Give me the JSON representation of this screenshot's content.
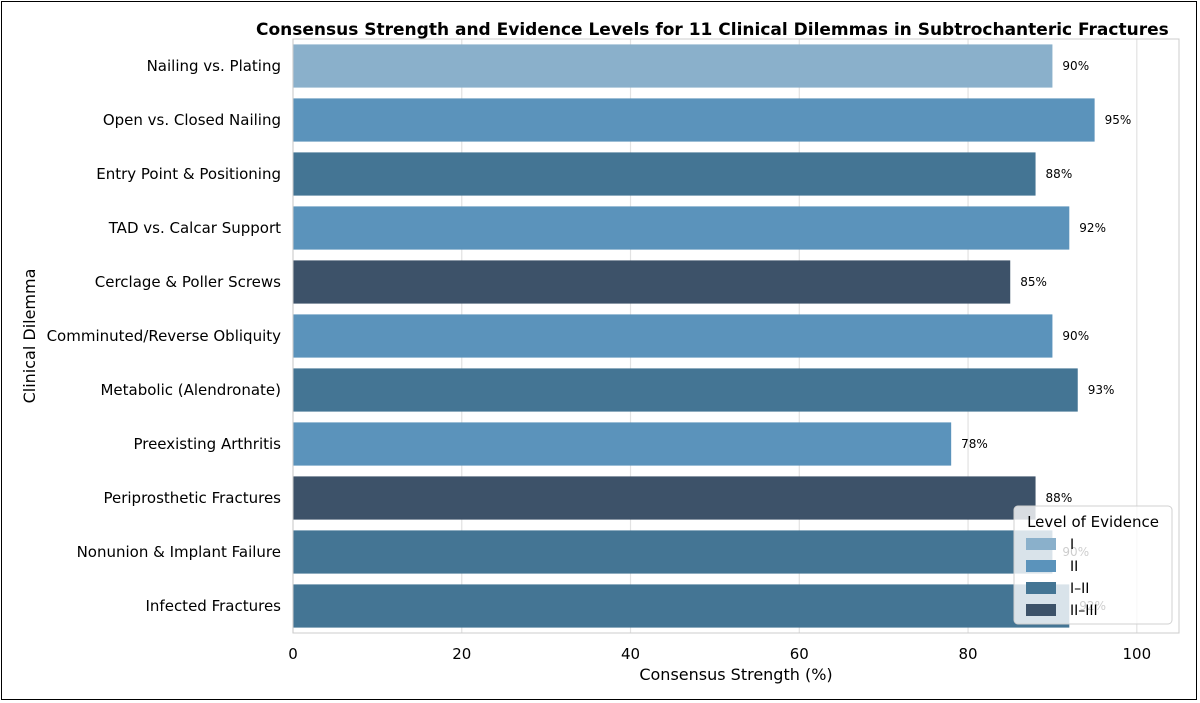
{
  "chart_data": {
    "type": "bar",
    "orientation": "horizontal",
    "title": "Consensus Strength and Evidence Levels for 11 Clinical Dilemmas in Subtrochanteric Fractures",
    "xlabel": "Consensus Strength (%)",
    "ylabel": "Clinical Dilemma",
    "xlim": [
      0,
      105
    ],
    "xticks": [
      0,
      20,
      40,
      60,
      80,
      100
    ],
    "grid": true,
    "categories": [
      "Nailing vs. Plating",
      "Open vs. Closed Nailing",
      "Entry Point & Positioning",
      "TAD vs. Calcar Support",
      "Cerclage & Poller Screws",
      "Comminuted/Reverse Obliquity",
      "Metabolic (Alendronate)",
      "Preexisting Arthritis",
      "Periprosthetic Fractures",
      "Nonunion & Implant Failure",
      "Infected Fractures"
    ],
    "values": [
      90,
      95,
      88,
      92,
      85,
      90,
      93,
      78,
      88,
      90,
      92
    ],
    "data_labels": [
      "90%",
      "95%",
      "88%",
      "92%",
      "85%",
      "90%",
      "93%",
      "78%",
      "88%",
      "90%",
      "92%"
    ],
    "evidence_level": [
      "I",
      "II",
      "I–II",
      "II",
      "II–III",
      "II",
      "I–II",
      "II",
      "II–III",
      "I–II",
      "I–II"
    ],
    "legend": {
      "title": "Level of Evidence",
      "placement": "lower-right",
      "entries": [
        {
          "label": "I",
          "color": "#8ab0cb"
        },
        {
          "label": "II",
          "color": "#5b93bb"
        },
        {
          "label": "I–II",
          "color": "#447594"
        },
        {
          "label": "II–III",
          "color": "#3d5269"
        }
      ]
    }
  }
}
